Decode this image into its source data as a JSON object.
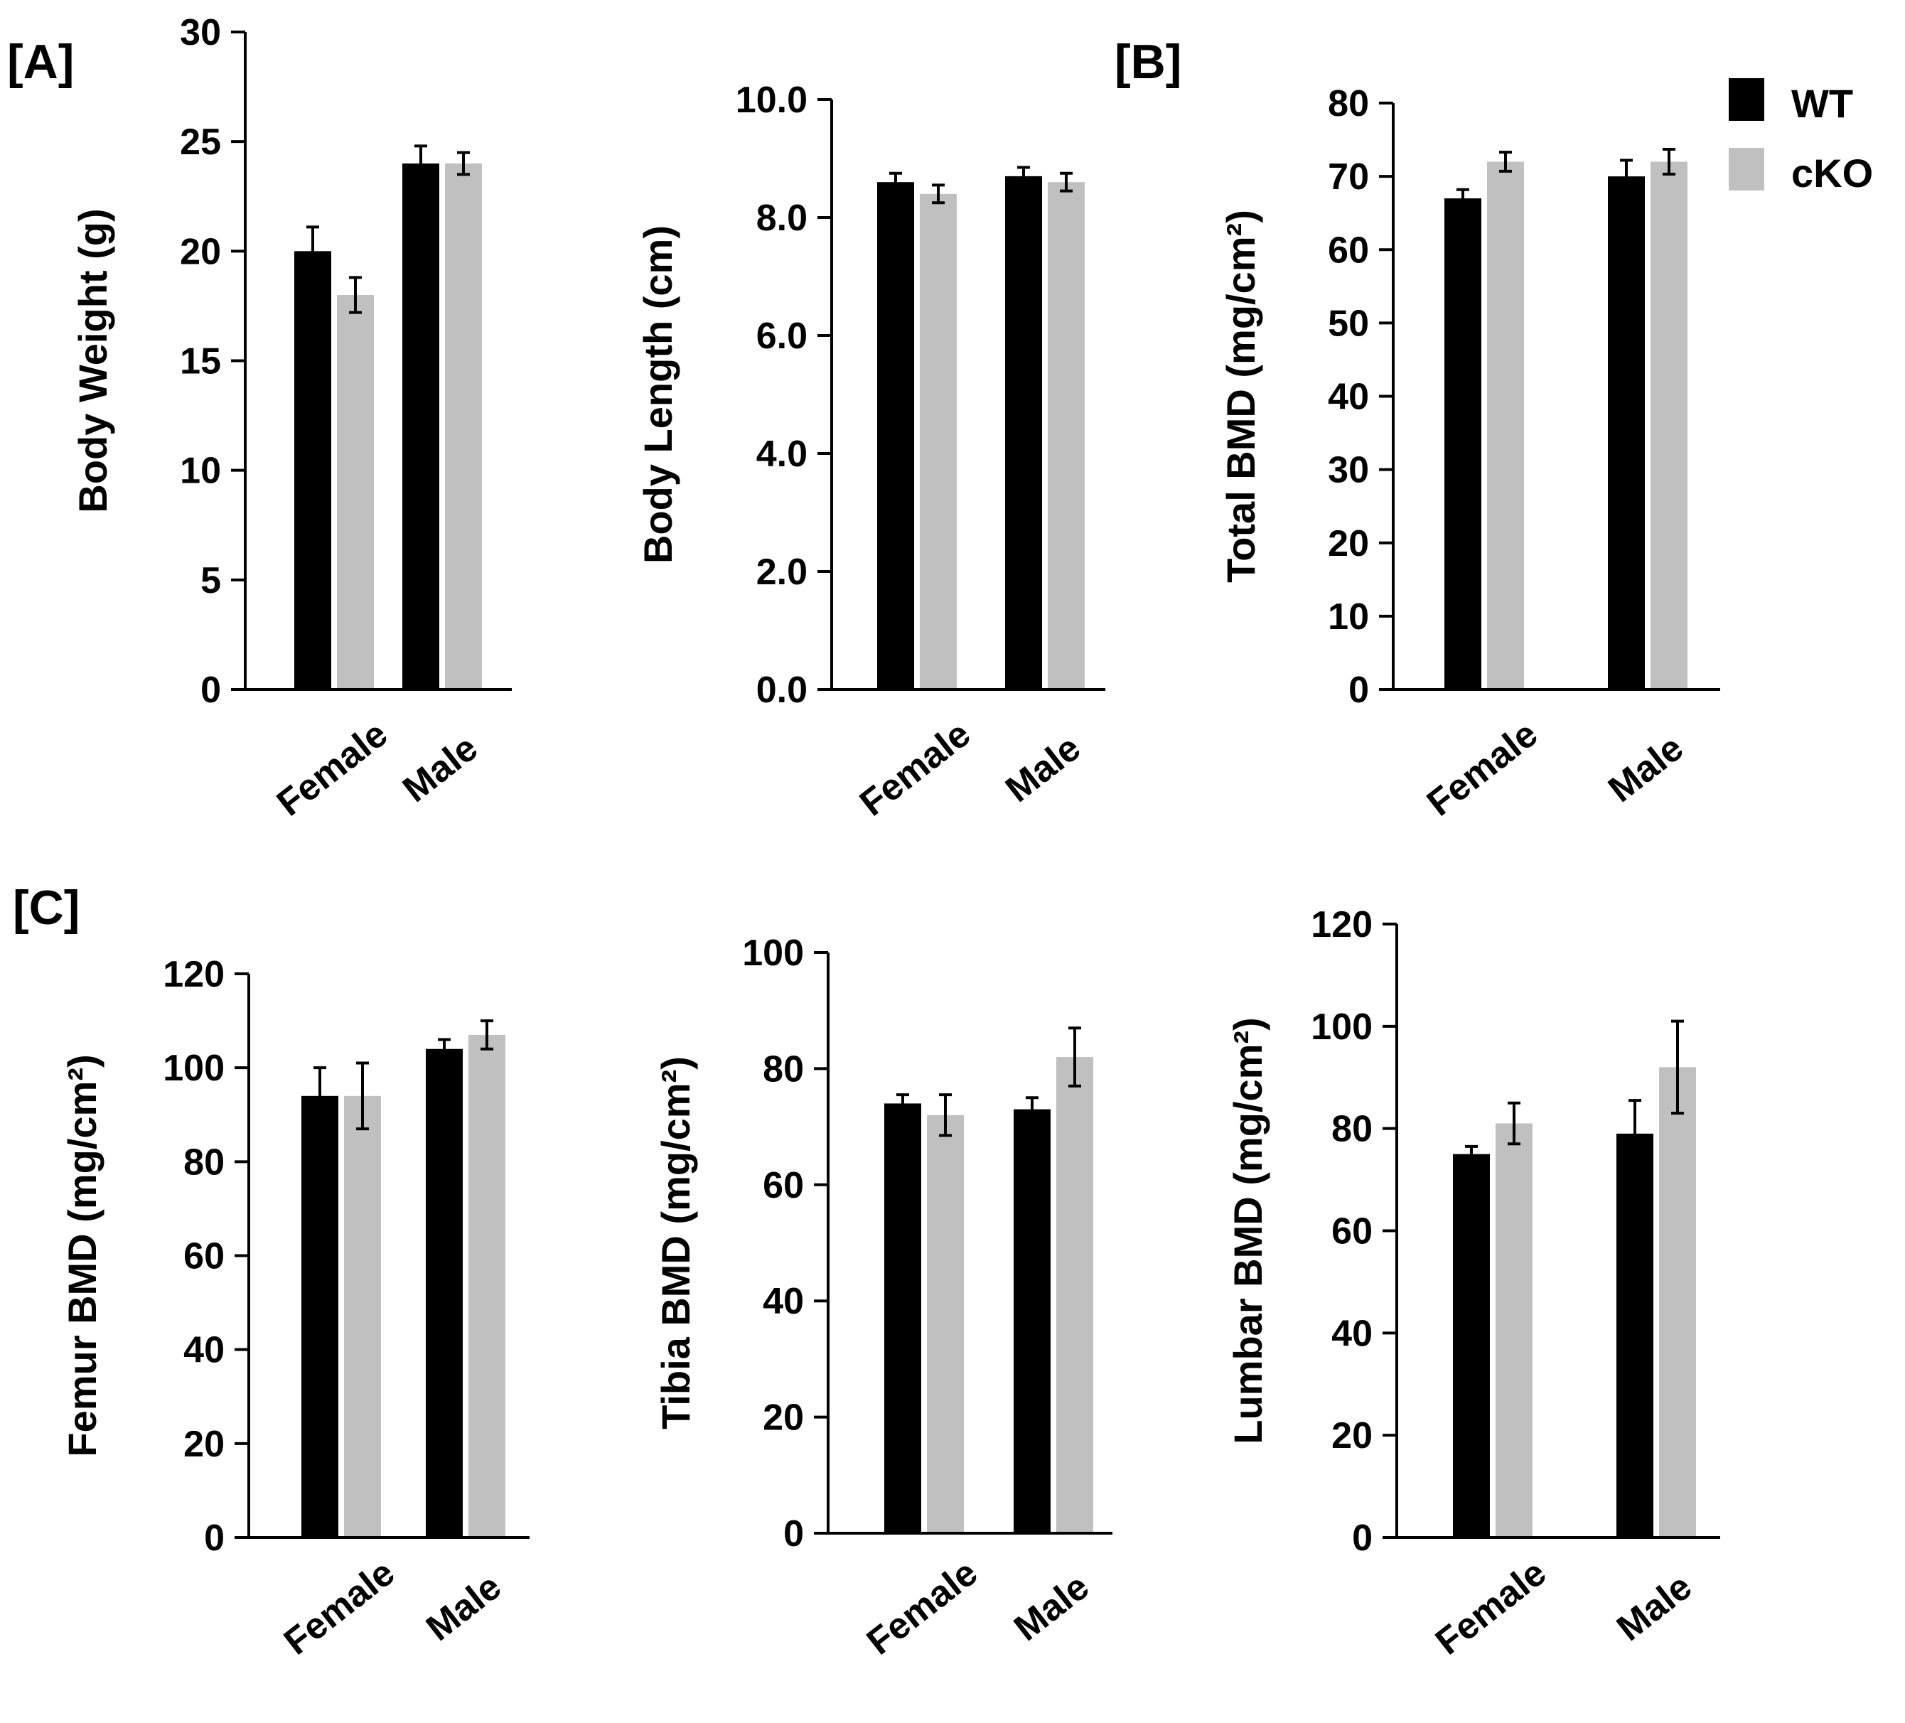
{
  "panel_labels": {
    "a": "[A]",
    "b": "[B]",
    "c": "[C]"
  },
  "legend": {
    "items": [
      {
        "label": "WT",
        "color": "#000000"
      },
      {
        "label": "cKO",
        "color": "#c0c0c0"
      }
    ]
  },
  "chart_data": [
    {
      "type": "bar",
      "ylabel": "Body Weight (g)",
      "categories": [
        "Female",
        "Male"
      ],
      "ylim": [
        0,
        30
      ],
      "yticks": [
        "0",
        "5",
        "10",
        "15",
        "20",
        "25",
        "30"
      ],
      "series": [
        {
          "name": "WT",
          "values": [
            20,
            24
          ],
          "errors": [
            1.1,
            0.8
          ]
        },
        {
          "name": "cKO",
          "values": [
            18,
            24
          ],
          "errors": [
            0.8,
            0.5
          ]
        }
      ]
    },
    {
      "type": "bar",
      "ylabel": "Body Length (cm)",
      "categories": [
        "Female",
        "Male"
      ],
      "ylim": [
        0,
        10
      ],
      "yticks": [
        "0.0",
        "2.0",
        "4.0",
        "6.0",
        "8.0",
        "10.0"
      ],
      "series": [
        {
          "name": "WT",
          "values": [
            8.6,
            8.7
          ],
          "errors": [
            0.15,
            0.15
          ]
        },
        {
          "name": "cKO",
          "values": [
            8.4,
            8.6
          ],
          "errors": [
            0.15,
            0.15
          ]
        }
      ]
    },
    {
      "type": "bar",
      "ylabel": "Total BMD (mg/cm²)",
      "categories": [
        "Female",
        "Male"
      ],
      "ylim": [
        0,
        80
      ],
      "yticks": [
        "0",
        "10",
        "20",
        "30",
        "40",
        "50",
        "60",
        "70",
        "80"
      ],
      "series": [
        {
          "name": "WT",
          "values": [
            67,
            70
          ],
          "errors": [
            1.2,
            2.2
          ]
        },
        {
          "name": "cKO",
          "values": [
            72,
            72
          ],
          "errors": [
            1.3,
            1.7
          ]
        }
      ]
    },
    {
      "type": "bar",
      "ylabel": "Femur BMD (mg/cm²)",
      "categories": [
        "Female",
        "Male"
      ],
      "ylim": [
        0,
        120
      ],
      "yticks": [
        "0",
        "20",
        "40",
        "60",
        "80",
        "100",
        "120"
      ],
      "series": [
        {
          "name": "WT",
          "values": [
            94,
            104
          ],
          "errors": [
            6,
            2
          ]
        },
        {
          "name": "cKO",
          "values": [
            94,
            107
          ],
          "errors": [
            7,
            3
          ]
        }
      ]
    },
    {
      "type": "bar",
      "ylabel": "Tibia BMD (mg/cm²)",
      "categories": [
        "Female",
        "Male"
      ],
      "ylim": [
        0,
        100
      ],
      "yticks": [
        "0",
        "20",
        "40",
        "60",
        "80",
        "100"
      ],
      "series": [
        {
          "name": "WT",
          "values": [
            74,
            73
          ],
          "errors": [
            1.5,
            2
          ]
        },
        {
          "name": "cKO",
          "values": [
            72,
            82
          ],
          "errors": [
            3.5,
            5
          ]
        }
      ]
    },
    {
      "type": "bar",
      "ylabel": "Lumbar BMD (mg/cm²)",
      "categories": [
        "Female",
        "Male"
      ],
      "ylim": [
        0,
        120
      ],
      "yticks": [
        "0",
        "20",
        "40",
        "60",
        "80",
        "100",
        "120"
      ],
      "series": [
        {
          "name": "WT",
          "values": [
            75,
            79
          ],
          "errors": [
            1.5,
            6.5
          ]
        },
        {
          "name": "cKO",
          "values": [
            81,
            92
          ],
          "errors": [
            4,
            9
          ]
        }
      ]
    }
  ]
}
